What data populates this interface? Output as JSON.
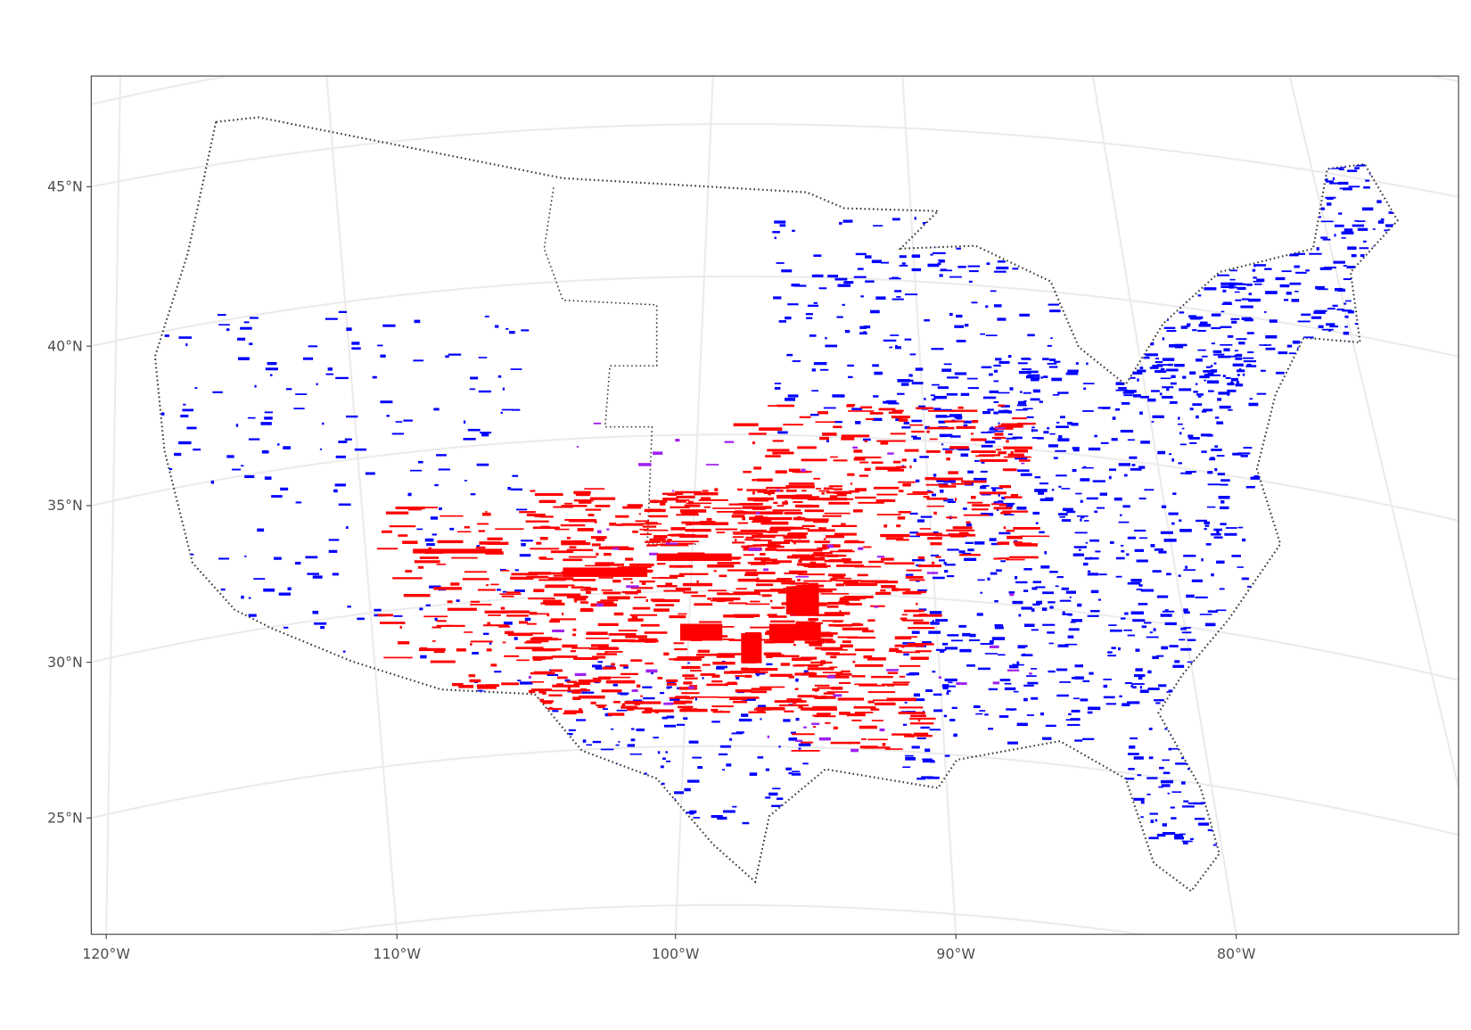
{
  "axes": {
    "y_labels": [
      "45°N",
      "40°N",
      "35°N",
      "30°N",
      "25°N"
    ],
    "x_labels": [
      "120°W",
      "110°W",
      "100°W",
      "90°W",
      "80°W"
    ]
  }
}
